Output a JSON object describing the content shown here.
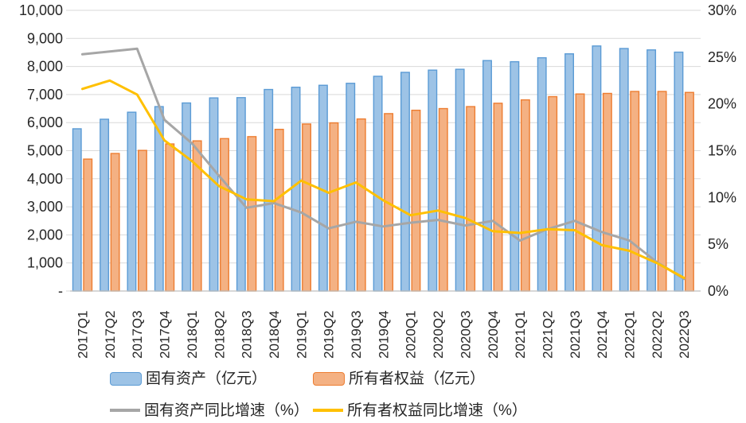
{
  "chart_data": {
    "type": "combo-bar-line",
    "title": "",
    "categories": [
      "2017Q1",
      "2017Q2",
      "2017Q3",
      "2017Q4",
      "2018Q1",
      "2018Q2",
      "2018Q3",
      "2018Q4",
      "2019Q1",
      "2019Q2",
      "2019Q3",
      "2019Q4",
      "2020Q1",
      "2020Q2",
      "2020Q3",
      "2020Q4",
      "2021Q1",
      "2021Q2",
      "2021Q3",
      "2021Q4",
      "2022Q1",
      "2022Q2",
      "2022Q3"
    ],
    "series": [
      {
        "name": "固有资产（亿元）",
        "type": "bar",
        "axis": "left",
        "fill": "#9DC3E6",
        "border": "#5B9BD5",
        "values": [
          5780,
          6120,
          6370,
          6570,
          6700,
          6880,
          6890,
          7180,
          7260,
          7330,
          7400,
          7650,
          7790,
          7870,
          7900,
          8210,
          8170,
          8310,
          8450,
          8730,
          8640,
          8590,
          8510
        ]
      },
      {
        "name": "所有者权益（亿元）",
        "type": "bar",
        "axis": "left",
        "fill": "#F4B183",
        "border": "#ED7D31",
        "values": [
          4700,
          4900,
          5010,
          5240,
          5350,
          5430,
          5500,
          5760,
          5950,
          5990,
          6130,
          6320,
          6440,
          6500,
          6570,
          6690,
          6810,
          6925,
          7020,
          7040,
          7110,
          7110,
          7075
        ]
      },
      {
        "name": "固有资产同比增速（%）",
        "type": "line",
        "axis": "right",
        "color": "#A6A6A6",
        "values": [
          25.3,
          25.6,
          25.9,
          18.3,
          15.8,
          12.3,
          8.9,
          9.4,
          8.4,
          6.7,
          7.4,
          6.9,
          7.3,
          7.6,
          7.0,
          7.5,
          5.4,
          6.6,
          7.5,
          6.3,
          5.4,
          3.1,
          1.3
        ]
      },
      {
        "name": "所有者权益同比增速（%）",
        "type": "line",
        "axis": "right",
        "color": "#FFC000",
        "values": [
          21.6,
          22.5,
          21.0,
          16.1,
          13.9,
          11.2,
          9.8,
          9.6,
          11.8,
          10.5,
          11.6,
          9.7,
          8.1,
          8.6,
          7.8,
          6.4,
          6.2,
          6.6,
          6.5,
          4.9,
          4.3,
          3.0,
          1.4
        ]
      }
    ],
    "left_axis": {
      "min": 0,
      "max": 10000,
      "step": 1000,
      "tick_labels": [
        "-",
        "1,000",
        "2,000",
        "3,000",
        "4,000",
        "5,000",
        "6,000",
        "7,000",
        "8,000",
        "9,000",
        "10,000"
      ]
    },
    "right_axis": {
      "min": 0,
      "max": 30,
      "step": 5,
      "tick_labels": [
        "0%",
        "5%",
        "10%",
        "15%",
        "20%",
        "25%",
        "30%"
      ]
    },
    "grid": true,
    "legend_position": "bottom",
    "colors": {
      "gridline": "#D9D9D9",
      "axis_line": "#BFBFBF",
      "tick_text": "#262626"
    }
  }
}
